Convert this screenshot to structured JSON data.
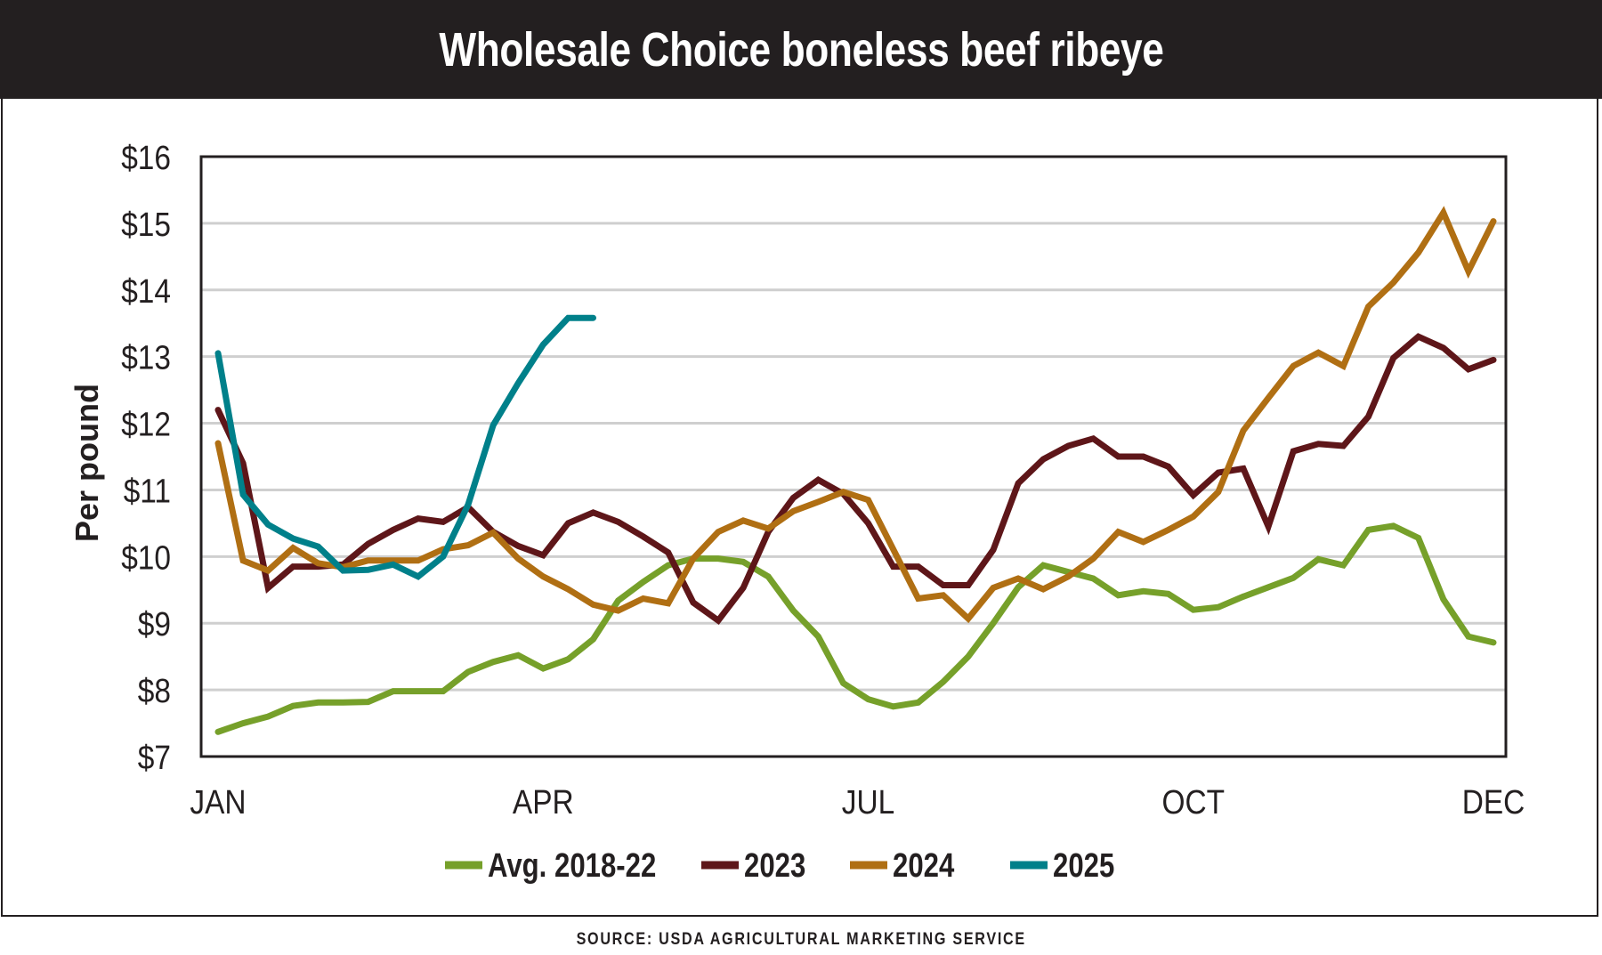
{
  "title": "Wholesale Choice boneless beef ribeye",
  "source": "SOURCE: USDA AGRICULTURAL MARKETING SERVICE",
  "chart_data": {
    "type": "line",
    "title": "Wholesale Choice boneless beef ribeye",
    "ylabel": "Per pound",
    "xlabel": "",
    "ylim": [
      7,
      16
    ],
    "yticks": [
      "$7",
      "$8",
      "$9",
      "$10",
      "$11",
      "$12",
      "$13",
      "$14",
      "$15",
      "$16"
    ],
    "xticks": [
      "JAN",
      "APR",
      "JUL",
      "OCT",
      "DEC"
    ],
    "xtick_weeks": [
      0,
      13,
      26,
      39,
      51
    ],
    "x_unit": "week",
    "grid": true,
    "legend": "bottom",
    "series": [
      {
        "name": "Avg. 2018-22",
        "color": "#76a02a",
        "values": [
          7.37,
          7.5,
          7.6,
          7.76,
          7.81,
          7.81,
          7.82,
          7.98,
          7.98,
          7.98,
          8.27,
          8.42,
          8.52,
          8.32,
          8.46,
          8.76,
          9.34,
          9.62,
          9.87,
          9.97,
          9.97,
          9.92,
          9.7,
          9.19,
          8.8,
          8.1,
          7.86,
          7.75,
          7.81,
          8.12,
          8.5,
          9.0,
          9.54,
          9.87,
          9.77,
          9.67,
          9.42,
          9.48,
          9.44,
          9.2,
          9.24,
          9.4,
          9.54,
          9.68,
          9.96,
          9.87,
          10.4,
          10.46,
          10.28,
          9.36,
          8.8,
          8.71
        ]
      },
      {
        "name": "2023",
        "color": "#5e1619",
        "values": [
          12.2,
          11.4,
          9.53,
          9.85,
          9.85,
          9.88,
          10.19,
          10.4,
          10.57,
          10.52,
          10.74,
          10.37,
          10.16,
          10.02,
          10.5,
          10.66,
          10.52,
          10.3,
          10.06,
          9.31,
          9.04,
          9.53,
          10.37,
          10.88,
          11.15,
          10.94,
          10.5,
          9.85,
          9.85,
          9.57,
          9.57,
          10.1,
          11.1,
          11.46,
          11.66,
          11.77,
          11.5,
          11.5,
          11.35,
          10.92,
          11.26,
          11.32,
          10.45,
          11.58,
          11.69,
          11.66,
          12.1,
          12.98,
          13.3,
          13.13,
          12.81,
          12.95
        ]
      },
      {
        "name": "2024",
        "color": "#b06f13",
        "values": [
          11.7,
          9.94,
          9.79,
          10.13,
          9.9,
          9.84,
          9.94,
          9.94,
          9.94,
          10.11,
          10.17,
          10.36,
          9.97,
          9.7,
          9.51,
          9.28,
          9.19,
          9.37,
          9.3,
          9.97,
          10.37,
          10.54,
          10.42,
          10.68,
          10.82,
          10.97,
          10.85,
          10.11,
          9.37,
          9.42,
          9.07,
          9.53,
          9.67,
          9.51,
          9.7,
          9.97,
          10.37,
          10.22,
          10.4,
          10.6,
          10.97,
          11.89,
          12.38,
          12.86,
          13.06,
          12.86,
          13.75,
          14.11,
          14.56,
          15.16,
          14.28,
          15.03
        ]
      },
      {
        "name": "2025",
        "color": "#00808a",
        "values": [
          13.05,
          10.93,
          10.48,
          10.27,
          10.15,
          9.79,
          9.8,
          9.88,
          9.7,
          10.0,
          10.78,
          11.97,
          12.6,
          13.18,
          13.58,
          13.58
        ]
      }
    ]
  }
}
